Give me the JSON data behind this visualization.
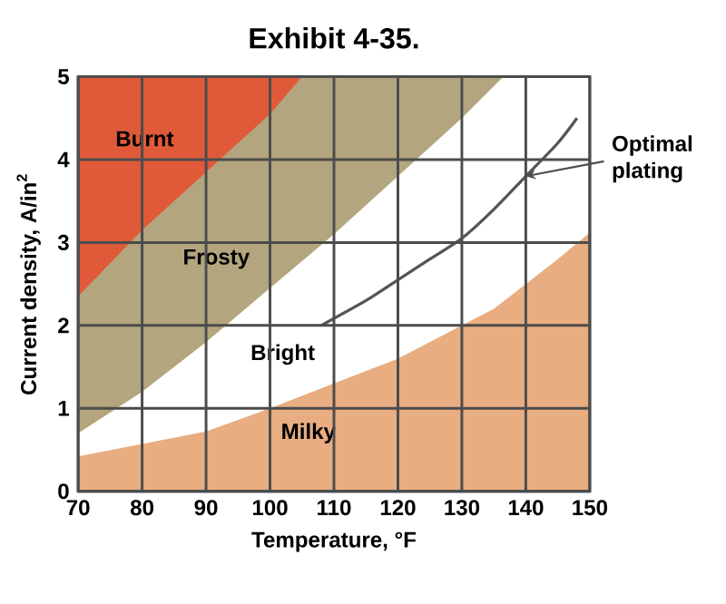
{
  "chart_data": {
    "type": "area",
    "title": "Exhibit 4-35.",
    "xlabel": "Temperature, °F",
    "ylabel": "Current density, A/in$^{2}$",
    "xlim": [
      70,
      150
    ],
    "ylim": [
      0,
      5
    ],
    "xticks": [
      70,
      80,
      90,
      100,
      110,
      120,
      130,
      140,
      150
    ],
    "yticks": [
      0,
      1,
      2,
      3,
      4,
      5
    ],
    "grid": true,
    "series": [
      {
        "color": "#b3a57e",
        "x": [
          70,
          80,
          90,
          98,
          110,
          120,
          130,
          136.5
        ],
        "values": [
          0.7,
          1.2,
          1.8,
          2.32,
          3.1,
          3.8,
          4.5,
          5
        ]
      },
      {
        "color": "#e05a3a",
        "x": [
          70,
          80,
          90,
          100,
          105
        ],
        "values": [
          2.35,
          3.15,
          3.85,
          4.55,
          5
        ]
      },
      {
        "color": "#e8ad80",
        "x": [
          70,
          80,
          90,
          100,
          110,
          120,
          125,
          130,
          135,
          140,
          145,
          150
        ],
        "values": [
          0.42,
          0.57,
          0.72,
          1.0,
          1.3,
          1.6,
          1.8,
          2.0,
          2.2,
          2.5,
          2.8,
          3.12
        ]
      },
      {
        "type": "line",
        "color": "#555555",
        "x": [
          108,
          115,
          120,
          125,
          130,
          135,
          140,
          145,
          148
        ],
        "values": [
          2.0,
          2.3,
          2.55,
          2.8,
          3.05,
          3.4,
          3.8,
          4.2,
          4.5
        ]
      }
    ],
    "annotations": [
      "Burnt",
      "Frosty",
      "Bright",
      "Milky",
      {
        "text": "Optimal plating",
        "x": 140,
        "y": 3.8
      }
    ]
  }
}
